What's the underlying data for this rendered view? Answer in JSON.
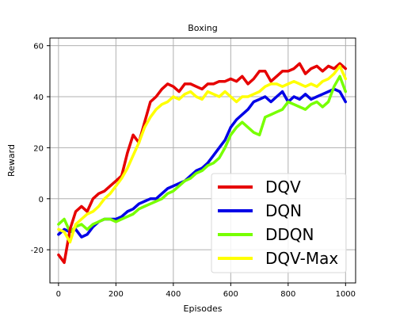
{
  "chart_data": {
    "type": "line",
    "title": "Boxing",
    "xlabel": "Episodes",
    "ylabel": "Reward",
    "xlim": [
      -30,
      1035
    ],
    "ylim": [
      -33,
      63
    ],
    "xticks": [
      0,
      200,
      400,
      600,
      800,
      1000
    ],
    "yticks": [
      -20,
      0,
      20,
      40,
      60
    ],
    "grid": true,
    "legend_position": "lower-right",
    "x": [
      0,
      20,
      40,
      60,
      80,
      100,
      120,
      140,
      160,
      180,
      200,
      220,
      240,
      260,
      280,
      300,
      320,
      340,
      360,
      380,
      400,
      420,
      440,
      460,
      480,
      500,
      520,
      540,
      560,
      580,
      600,
      620,
      640,
      660,
      680,
      700,
      720,
      740,
      760,
      780,
      800,
      820,
      840,
      860,
      880,
      900,
      920,
      940,
      960,
      980,
      1000
    ],
    "series": [
      {
        "name": "DQV",
        "color": "#e60000",
        "values": [
          -22,
          -25,
          -12,
          -5,
          -3,
          -5,
          0,
          2,
          3,
          5,
          7,
          9,
          18,
          25,
          22,
          30,
          38,
          40,
          43,
          45,
          44,
          42,
          45,
          45,
          44,
          43,
          45,
          45,
          46,
          46,
          47,
          46,
          48,
          45,
          47,
          50,
          50,
          46,
          48,
          50,
          50,
          51,
          53,
          49,
          51,
          52,
          50,
          52,
          51,
          53,
          51
        ]
      },
      {
        "name": "DQN",
        "color": "#0000e6",
        "values": [
          -14,
          -12,
          -13,
          -12,
          -15,
          -14,
          -11,
          -9,
          -8,
          -8,
          -8,
          -7,
          -5,
          -4,
          -2,
          -1,
          0,
          0,
          2,
          4,
          5,
          6,
          7,
          9,
          11,
          12,
          14,
          17,
          20,
          23,
          28,
          31,
          33,
          35,
          38,
          39,
          40,
          38,
          40,
          42,
          38,
          40,
          39,
          41,
          39,
          40,
          41,
          42,
          43,
          42,
          38
        ]
      },
      {
        "name": "DDQN",
        "color": "#77ff00",
        "values": [
          -10,
          -8,
          -13,
          -11,
          -10,
          -12,
          -10,
          -9,
          -8,
          -8,
          -9,
          -8,
          -7,
          -6,
          -4,
          -3,
          -2,
          -1,
          0,
          2,
          3,
          5,
          7,
          8,
          10,
          11,
          13,
          14,
          16,
          20,
          25,
          28,
          30,
          28,
          26,
          25,
          32,
          33,
          34,
          35,
          38,
          37,
          36,
          35,
          37,
          38,
          36,
          38,
          44,
          48,
          42
        ]
      },
      {
        "name": "DQV-Max",
        "color": "#ffff00",
        "values": [
          -12,
          -13,
          -17,
          -10,
          -8,
          -6,
          -5,
          -3,
          0,
          2,
          5,
          8,
          12,
          17,
          22,
          28,
          32,
          35,
          37,
          38,
          40,
          39,
          41,
          42,
          40,
          39,
          42,
          41,
          40,
          42,
          40,
          38,
          40,
          40,
          41,
          42,
          44,
          45,
          45,
          44,
          45,
          46,
          45,
          44,
          45,
          44,
          46,
          47,
          49,
          52,
          47
        ]
      }
    ]
  }
}
